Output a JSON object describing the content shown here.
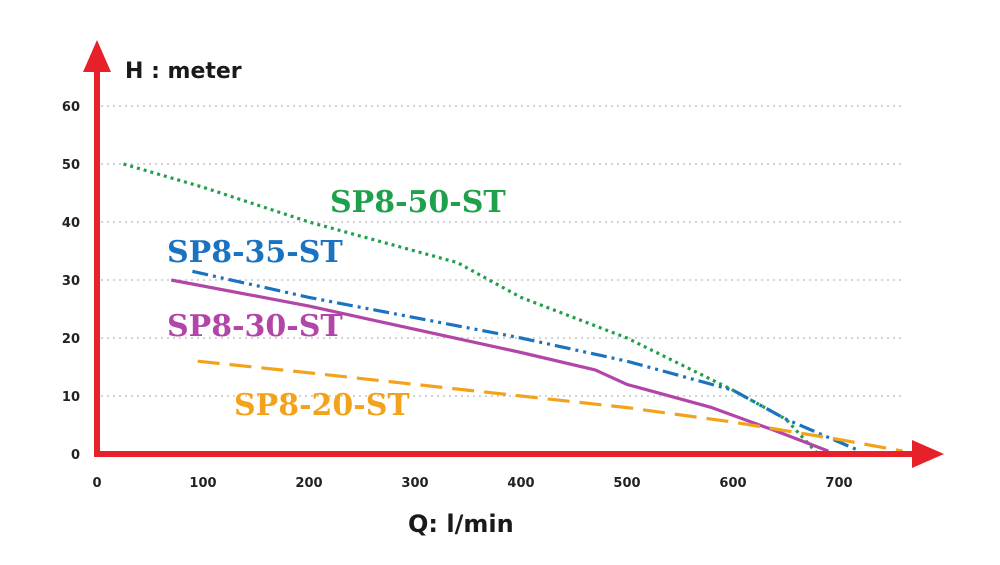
{
  "chart_data": {
    "type": "line",
    "title": "",
    "xlabel": "Q: l/min",
    "ylabel": "H : meter",
    "xlim": [
      0,
      760
    ],
    "ylim": [
      0,
      62
    ],
    "xticks": [
      0,
      100,
      200,
      300,
      400,
      500,
      600,
      700
    ],
    "yticks": [
      0,
      10,
      20,
      30,
      40,
      50,
      60
    ],
    "grid": "horizontal dotted",
    "axis_color": "#e8202a",
    "series": [
      {
        "name": "SP8-50-ST",
        "color": "#1fa04a",
        "dash": "dotted",
        "x": [
          25,
          100,
          200,
          340,
          400,
          500,
          600,
          650,
          680
        ],
        "y": [
          50,
          46,
          40,
          33,
          27,
          20,
          11,
          6,
          0
        ]
      },
      {
        "name": "SP8-35-ST",
        "color": "#1a73c1",
        "dash": "dash-dot-dot",
        "x": [
          90,
          200,
          300,
          400,
          500,
          600,
          650,
          720
        ],
        "y": [
          31.5,
          27,
          23.5,
          20,
          16,
          11,
          6,
          0.5
        ]
      },
      {
        "name": "SP8-30-ST",
        "color": "#b246a8",
        "dash": "solid",
        "x": [
          70,
          200,
          300,
          400,
          470,
          500,
          580,
          640,
          690
        ],
        "y": [
          30,
          25.5,
          21.5,
          17.5,
          14.5,
          12,
          8,
          4,
          0.5
        ]
      },
      {
        "name": "SP8-20-ST",
        "color": "#f2a31b",
        "dash": "dashed",
        "x": [
          95,
          200,
          300,
          400,
          500,
          600,
          700,
          760
        ],
        "y": [
          16,
          14,
          12,
          10,
          8,
          5.5,
          2.5,
          0.5
        ]
      }
    ]
  }
}
